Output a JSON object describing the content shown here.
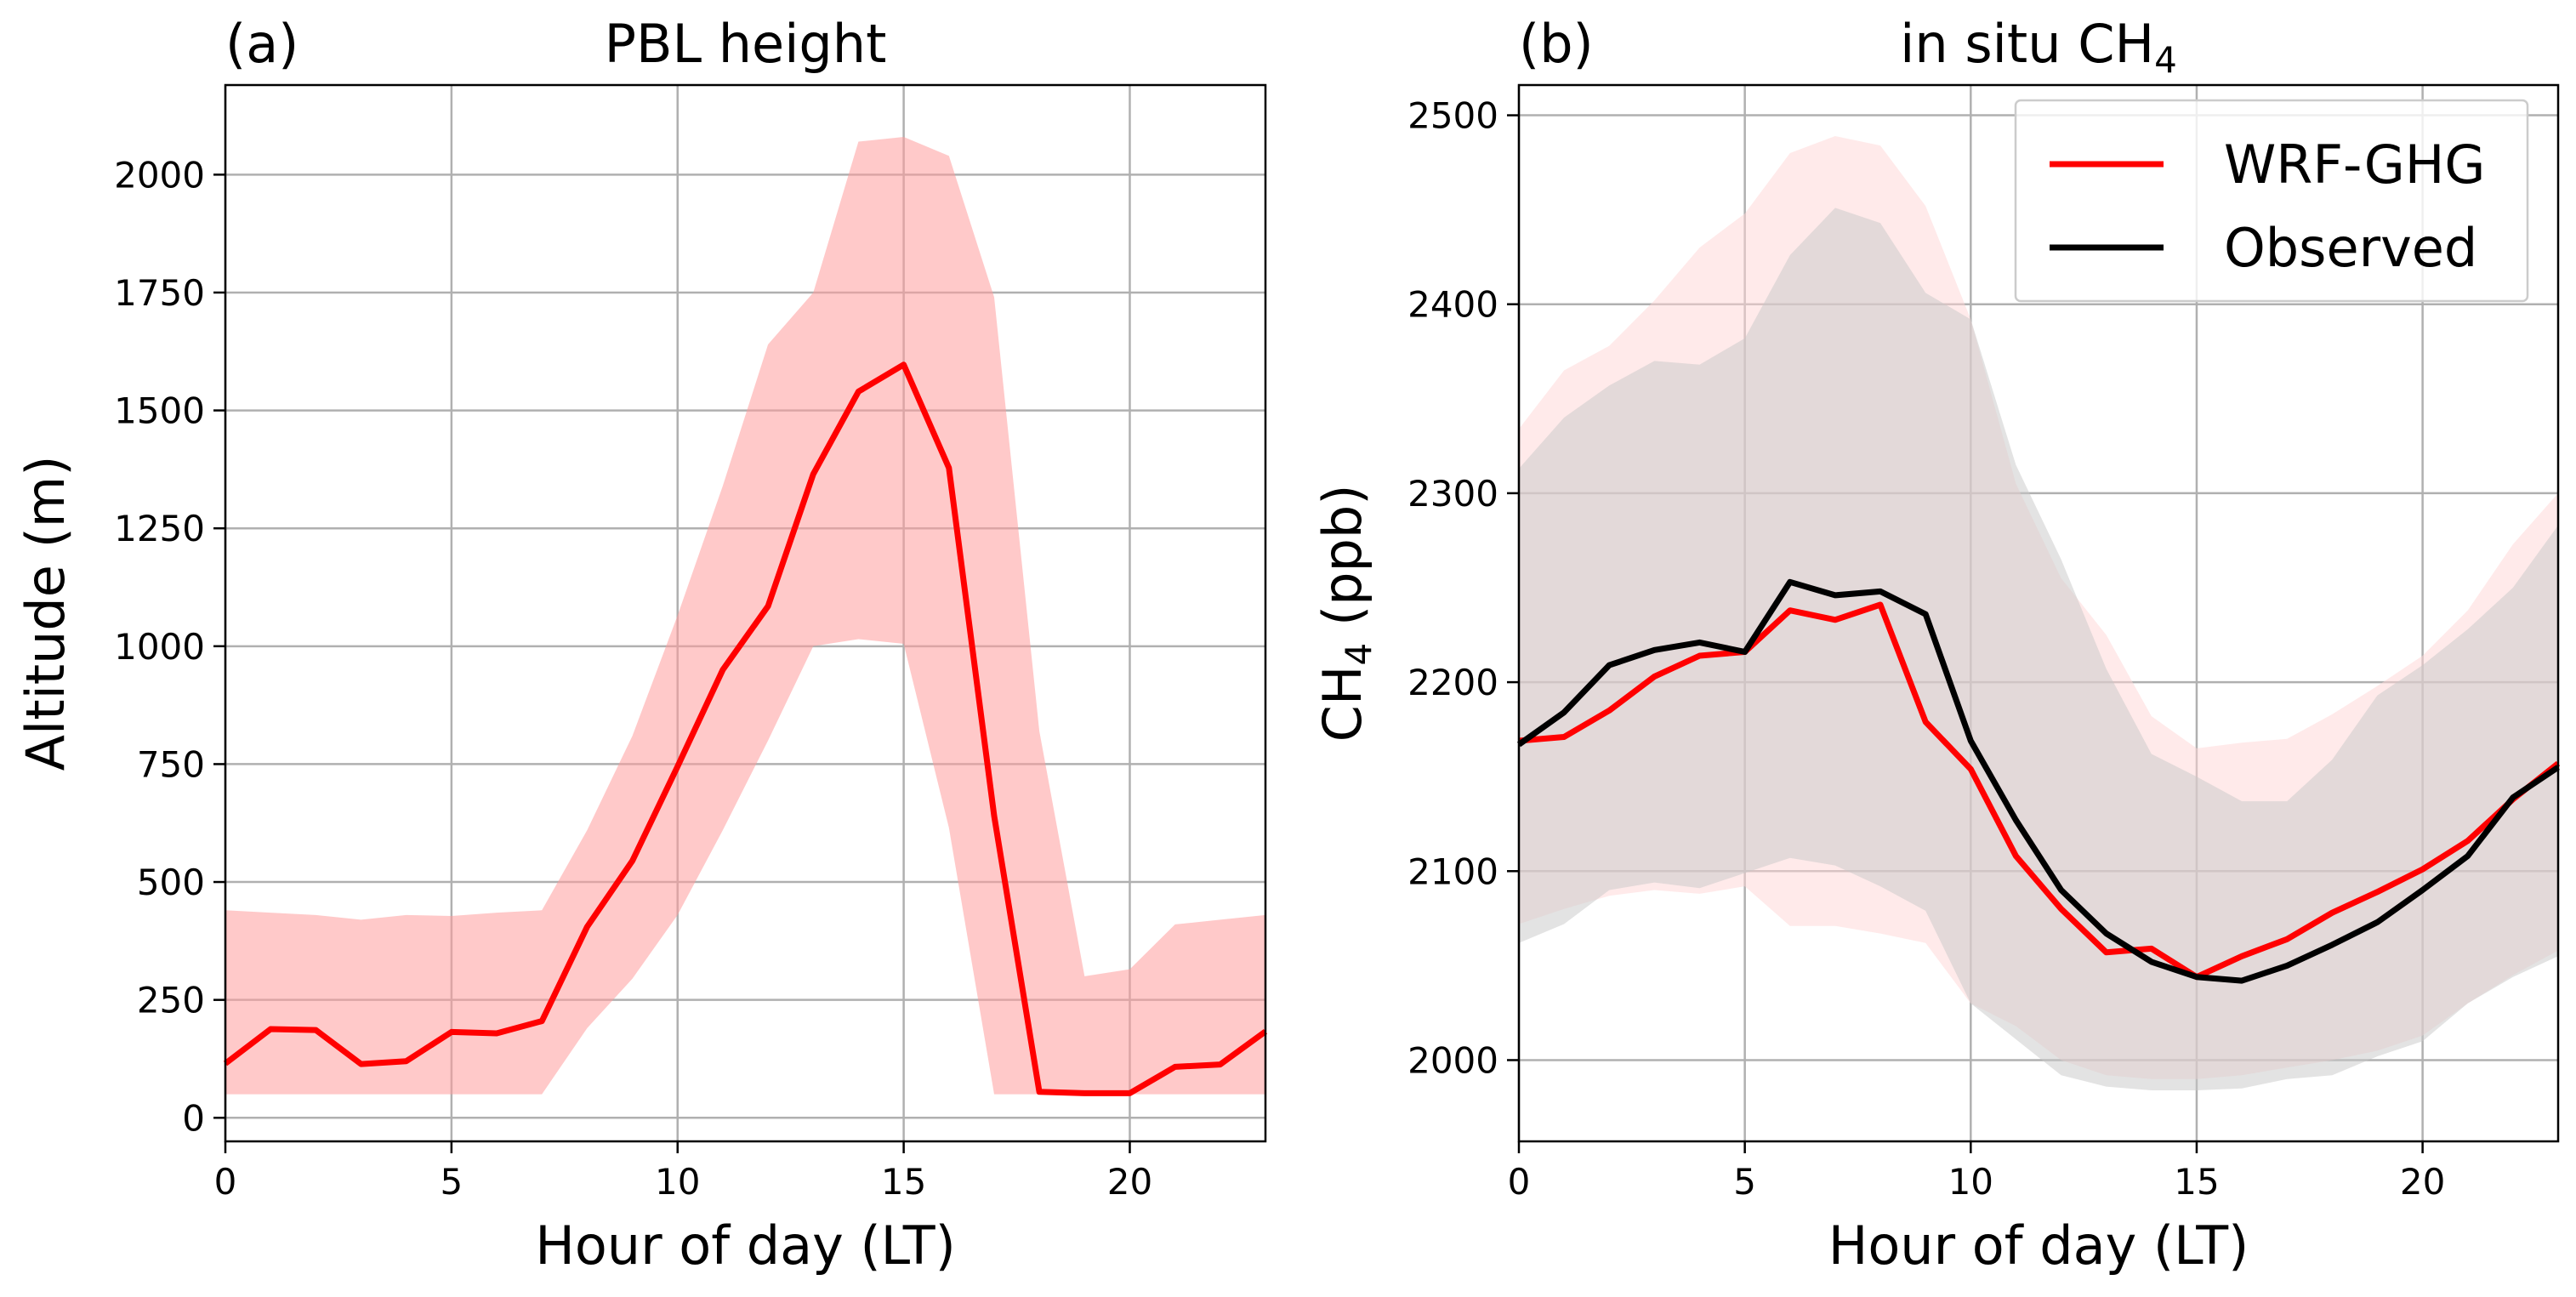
{
  "chart_data": [
    {
      "type": "line",
      "panel_label": "(a)",
      "title": "PBL height",
      "xlabel": "Hour of day (LT)",
      "ylabel": "Altitude (m)",
      "xlim": [
        0,
        23
      ],
      "ylim": [
        -50,
        2190
      ],
      "xticks": [
        0,
        5,
        10,
        15,
        20
      ],
      "yticks": [
        0,
        250,
        500,
        750,
        1000,
        1250,
        1500,
        1750,
        2000
      ],
      "grid": true,
      "legend": false,
      "x": [
        0,
        1,
        2,
        3,
        4,
        5,
        6,
        7,
        8,
        9,
        10,
        11,
        12,
        13,
        14,
        15,
        16,
        17,
        18,
        19,
        20,
        21,
        22,
        23
      ],
      "series": [
        {
          "color": "#ff0000",
          "values": [
            115,
            188,
            186,
            114,
            120,
            182,
            179,
            205,
            405,
            545,
            745,
            950,
            1085,
            1365,
            1540,
            1597,
            1378,
            640,
            55,
            52,
            52,
            108,
            113,
            183
          ],
          "band_lower": [
            50,
            50,
            50,
            50,
            50,
            50,
            50,
            50,
            190,
            295,
            430,
            610,
            800,
            1000,
            1015,
            1005,
            615,
            50,
            50,
            50,
            50,
            50,
            50,
            50
          ],
          "band_upper": [
            440,
            435,
            430,
            420,
            430,
            428,
            435,
            440,
            610,
            810,
            1065,
            1340,
            1640,
            1750,
            2070,
            2080,
            2040,
            1740,
            820,
            300,
            315,
            410,
            420,
            430
          ],
          "band_color": "#ff9c9c"
        }
      ]
    },
    {
      "type": "line",
      "panel_label": "(b)",
      "title": "in situ CH",
      "title_subscript": "4",
      "xlabel": "Hour of day (LT)",
      "ylabel": "CH",
      "ylabel_subscript": "4",
      "ylabel_suffix": " (ppb)",
      "xlim": [
        0,
        23
      ],
      "ylim": [
        1957,
        2516
      ],
      "xticks": [
        0,
        5,
        10,
        15,
        20
      ],
      "yticks": [
        2000,
        2100,
        2200,
        2300,
        2400,
        2500
      ],
      "grid": true,
      "legend": "top-right",
      "x": [
        0,
        1,
        2,
        3,
        4,
        5,
        6,
        7,
        8,
        9,
        10,
        11,
        12,
        13,
        14,
        15,
        16,
        17,
        18,
        19,
        20,
        21,
        22,
        23
      ],
      "series": [
        {
          "name": "WRF-GHG",
          "color": "#ff0000",
          "values": [
            2169,
            2171,
            2185,
            2203,
            2214,
            2216,
            2238,
            2233,
            2241,
            2179,
            2154,
            2108,
            2080,
            2057,
            2059,
            2044,
            2055,
            2064,
            2078,
            2089,
            2101,
            2116,
            2138,
            2157
          ],
          "band_lower": [
            2072,
            2080,
            2087,
            2090,
            2088,
            2092,
            2071,
            2071,
            2067,
            2062,
            2030,
            2018,
            2000,
            1992,
            1990,
            1990,
            1992,
            1996,
            2000,
            2005,
            2013,
            2030,
            2045,
            2058
          ],
          "band_upper": [
            2334,
            2365,
            2378,
            2402,
            2430,
            2448,
            2480,
            2489,
            2484,
            2452,
            2392,
            2305,
            2255,
            2225,
            2182,
            2165,
            2168,
            2170,
            2183,
            2198,
            2214,
            2238,
            2273,
            2300
          ],
          "band_color": "#ffd6d6"
        },
        {
          "name": "Observed",
          "color": "#000000",
          "values": [
            2167,
            2184,
            2209,
            2217,
            2221,
            2216,
            2253,
            2246,
            2248,
            2236,
            2169,
            2127,
            2090,
            2067,
            2052,
            2044,
            2042,
            2050,
            2061,
            2073,
            2090,
            2108,
            2139,
            2155
          ],
          "band_lower": [
            2062,
            2072,
            2090,
            2094,
            2091,
            2099,
            2107,
            2103,
            2092,
            2079,
            2030,
            2011,
            1992,
            1986,
            1984,
            1984,
            1985,
            1990,
            1992,
            2002,
            2010,
            2030,
            2044,
            2055
          ],
          "band_upper": [
            2313,
            2340,
            2357,
            2370,
            2368,
            2382,
            2426,
            2451,
            2443,
            2406,
            2392,
            2315,
            2265,
            2207,
            2162,
            2150,
            2137,
            2137,
            2159,
            2193,
            2209,
            2228,
            2250,
            2283
          ],
          "band_color": "#c8c8c8"
        }
      ]
    }
  ]
}
